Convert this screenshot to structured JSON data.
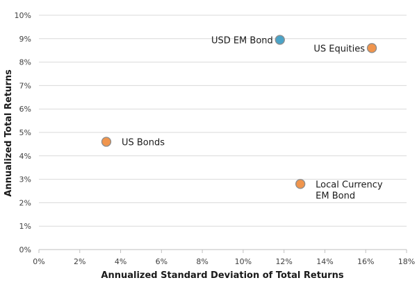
{
  "chart_data": {
    "type": "scatter",
    "xlabel": "Annualized Standard Deviation of Total Returns",
    "ylabel": "Annualized Total Returns",
    "xlim": [
      0,
      18
    ],
    "ylim": [
      0,
      10
    ],
    "x_ticks": [
      "0%",
      "2%",
      "4%",
      "6%",
      "8%",
      "10%",
      "12%",
      "14%",
      "16%",
      "18%"
    ],
    "y_ticks": [
      "0%",
      "1%",
      "2%",
      "3%",
      "4%",
      "5%",
      "6%",
      "7%",
      "8%",
      "9%",
      "10%"
    ],
    "grid": true,
    "points": [
      {
        "label": [
          "USD  EM Bond"
        ],
        "x": 11.8,
        "y": 8.95,
        "color": "#4ba3c7",
        "label_side": "left"
      },
      {
        "label": [
          "US Equities"
        ],
        "x": 16.3,
        "y": 8.6,
        "color": "#f0954d",
        "label_side": "left"
      },
      {
        "label": [
          "US Bonds"
        ],
        "x": 3.3,
        "y": 4.6,
        "color": "#f0954d",
        "label_side": "right"
      },
      {
        "label": [
          "Local Currency",
          "EM Bond"
        ],
        "x": 12.8,
        "y": 2.8,
        "color": "#f0954d",
        "label_side": "right"
      }
    ]
  }
}
